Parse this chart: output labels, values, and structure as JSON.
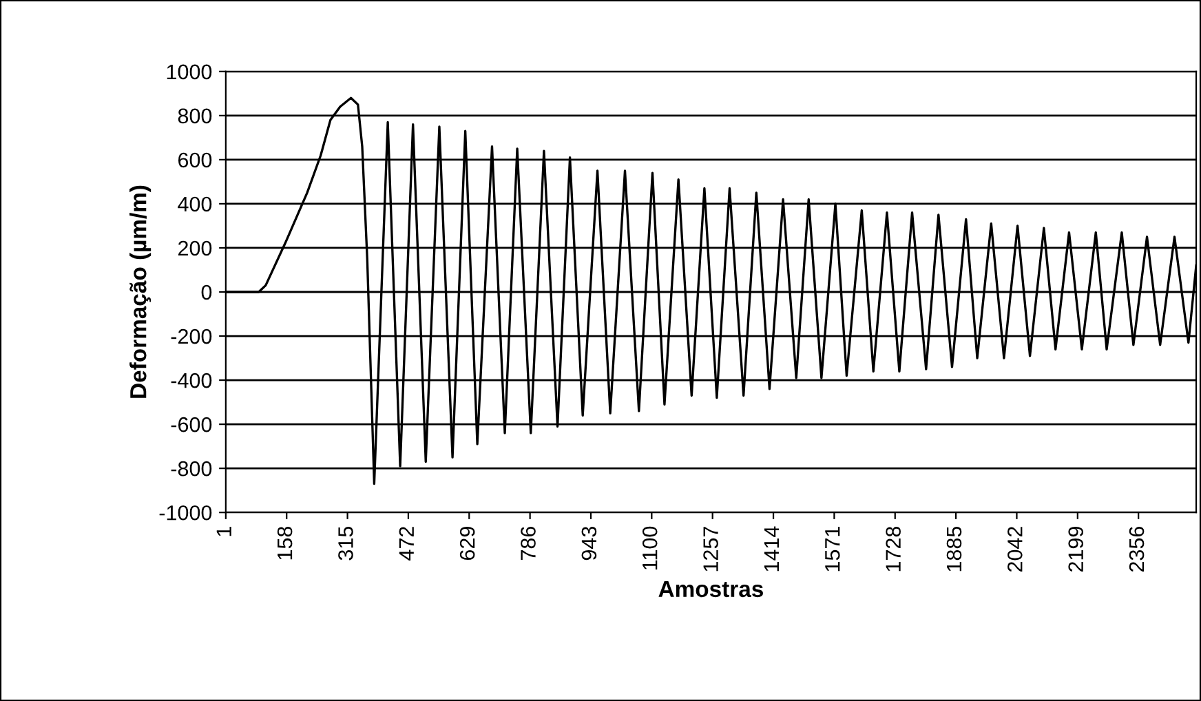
{
  "chart_data": {
    "type": "line",
    "xlabel": "Amostras",
    "ylabel": "Deformação (µm/m)",
    "x": [
      1,
      86,
      104,
      154,
      211,
      246,
      271,
      296,
      324,
      342,
      353,
      366,
      384,
      419,
      451,
      484,
      517,
      552,
      586,
      619,
      650,
      688,
      721,
      753,
      788,
      822,
      857,
      889,
      922,
      960,
      993,
      1031,
      1067,
      1102,
      1133,
      1169,
      1203,
      1236,
      1268,
      1301,
      1337,
      1370,
      1404,
      1439,
      1473,
      1505,
      1538,
      1574,
      1603,
      1642,
      1672,
      1707,
      1739,
      1772,
      1808,
      1840,
      1875,
      1911,
      1940,
      1976,
      2009,
      2044,
      2076,
      2112,
      2142,
      2177,
      2210,
      2246,
      2274,
      2313,
      2343,
      2378,
      2412,
      2449,
      2485,
      2505
    ],
    "series": [
      {
        "color": "#000000",
        "values": [
          0,
          0,
          30,
          220,
          450,
          620,
          780,
          840,
          880,
          850,
          660,
          150,
          -870,
          770,
          -790,
          760,
          -770,
          750,
          -750,
          730,
          -690,
          660,
          -640,
          650,
          -640,
          640,
          -610,
          610,
          -560,
          550,
          -550,
          550,
          -540,
          540,
          -510,
          510,
          -470,
          470,
          -480,
          470,
          -470,
          450,
          -440,
          420,
          -390,
          420,
          -390,
          400,
          -380,
          370,
          -360,
          360,
          -360,
          360,
          -350,
          350,
          -340,
          330,
          -300,
          310,
          -300,
          300,
          -290,
          290,
          -260,
          270,
          -260,
          270,
          -260,
          270,
          -240,
          250,
          -240,
          250,
          -230,
          120
        ]
      }
    ],
    "xlim": [
      1,
      2505
    ],
    "ylim": [
      -1000,
      1000
    ],
    "xticks": [
      1,
      158,
      315,
      472,
      629,
      786,
      943,
      1100,
      1257,
      1414,
      1571,
      1728,
      1885,
      2042,
      2199,
      2356
    ],
    "yticks": [
      -1000,
      -800,
      -600,
      -400,
      -200,
      0,
      200,
      400,
      600,
      800,
      1000
    ],
    "grid": "y",
    "marker": "none",
    "line_style": "solid"
  }
}
